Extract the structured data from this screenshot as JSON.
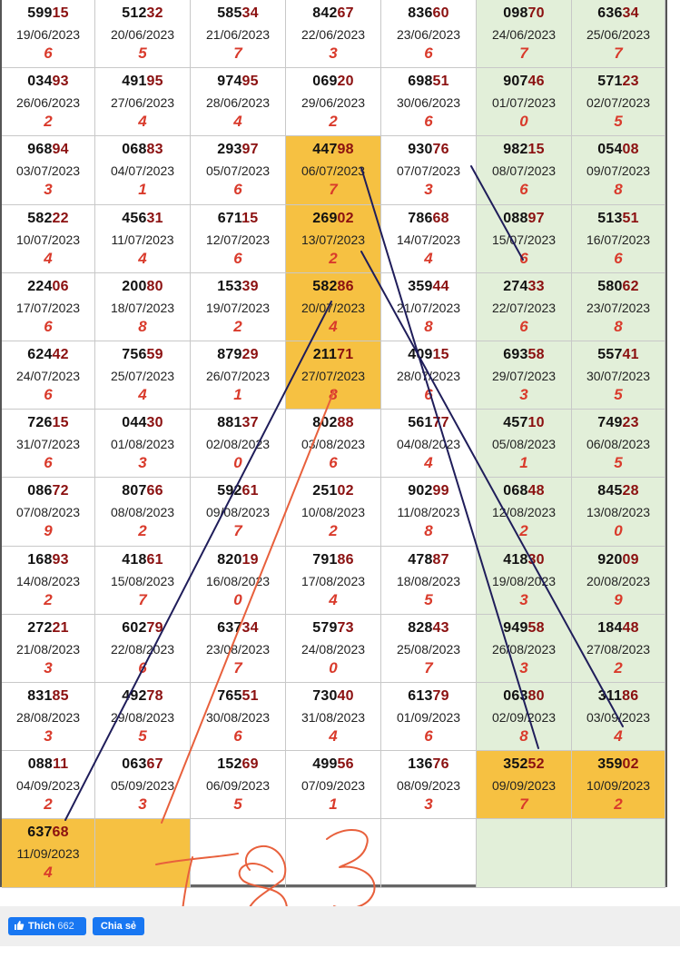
{
  "colors": {
    "green": "#e2efd9",
    "yellow": "#f6c142",
    "digit_black": "#111111",
    "digit_red": "#8b1010",
    "sum_red": "#d93a2b",
    "line_navy": "#1f1d5a",
    "line_orange": "#e8603c",
    "fb_blue": "#1877f2"
  },
  "grid": {
    "rows": [
      {
        "cells": [
          {
            "pre": "599",
            "suf": "15",
            "date": "19/06/2023",
            "sum": "6"
          },
          {
            "pre": "512",
            "suf": "32",
            "date": "20/06/2023",
            "sum": "5"
          },
          {
            "pre": "585",
            "suf": "34",
            "date": "21/06/2023",
            "sum": "7"
          },
          {
            "pre": "842",
            "suf": "67",
            "date": "22/06/2023",
            "sum": "3"
          },
          {
            "pre": "836",
            "suf": "60",
            "date": "23/06/2023",
            "sum": "6"
          },
          {
            "pre": "098",
            "suf": "70",
            "date": "24/06/2023",
            "sum": "7",
            "bg": "green"
          },
          {
            "pre": "636",
            "suf": "34",
            "date": "25/06/2023",
            "sum": "7",
            "bg": "green"
          }
        ]
      },
      {
        "cells": [
          {
            "pre": "034",
            "suf": "93",
            "date": "26/06/2023",
            "sum": "2"
          },
          {
            "pre": "491",
            "suf": "95",
            "date": "27/06/2023",
            "sum": "4"
          },
          {
            "pre": "974",
            "suf": "95",
            "date": "28/06/2023",
            "sum": "4"
          },
          {
            "pre": "069",
            "suf": "20",
            "date": "29/06/2023",
            "sum": "2"
          },
          {
            "pre": "698",
            "suf": "51",
            "date": "30/06/2023",
            "sum": "6"
          },
          {
            "pre": "907",
            "suf": "46",
            "date": "01/07/2023",
            "sum": "0",
            "bg": "green"
          },
          {
            "pre": "571",
            "suf": "23",
            "date": "02/07/2023",
            "sum": "5",
            "bg": "green"
          }
        ]
      },
      {
        "cells": [
          {
            "pre": "968",
            "suf": "94",
            "date": "03/07/2023",
            "sum": "3"
          },
          {
            "pre": "068",
            "suf": "83",
            "date": "04/07/2023",
            "sum": "1"
          },
          {
            "pre": "293",
            "suf": "97",
            "date": "05/07/2023",
            "sum": "6"
          },
          {
            "pre": "447",
            "suf": "98",
            "date": "06/07/2023",
            "sum": "7",
            "bg": "yellow"
          },
          {
            "pre": "930",
            "suf": "76",
            "date": "07/07/2023",
            "sum": "3"
          },
          {
            "pre": "982",
            "suf": "15",
            "date": "08/07/2023",
            "sum": "6",
            "bg": "green"
          },
          {
            "pre": "054",
            "suf": "08",
            "date": "09/07/2023",
            "sum": "8",
            "bg": "green"
          }
        ]
      },
      {
        "cells": [
          {
            "pre": "582",
            "suf": "22",
            "date": "10/07/2023",
            "sum": "4"
          },
          {
            "pre": "456",
            "suf": "31",
            "date": "11/07/2023",
            "sum": "4"
          },
          {
            "pre": "671",
            "suf": "15",
            "date": "12/07/2023",
            "sum": "6"
          },
          {
            "pre": "269",
            "suf": "02",
            "date": "13/07/2023",
            "sum": "2",
            "bg": "yellow"
          },
          {
            "pre": "786",
            "suf": "68",
            "date": "14/07/2023",
            "sum": "4"
          },
          {
            "pre": "088",
            "suf": "97",
            "date": "15/07/2023",
            "sum": "6",
            "bg": "green"
          },
          {
            "pre": "513",
            "suf": "51",
            "date": "16/07/2023",
            "sum": "6",
            "bg": "green"
          }
        ]
      },
      {
        "cells": [
          {
            "pre": "224",
            "suf": "06",
            "date": "17/07/2023",
            "sum": "6"
          },
          {
            "pre": "200",
            "suf": "80",
            "date": "18/07/2023",
            "sum": "8"
          },
          {
            "pre": "153",
            "suf": "39",
            "date": "19/07/2023",
            "sum": "2"
          },
          {
            "pre": "582",
            "suf": "86",
            "date": "20/07/2023",
            "sum": "4",
            "bg": "yellow"
          },
          {
            "pre": "359",
            "suf": "44",
            "date": "21/07/2023",
            "sum": "8"
          },
          {
            "pre": "274",
            "suf": "33",
            "date": "22/07/2023",
            "sum": "6",
            "bg": "green"
          },
          {
            "pre": "580",
            "suf": "62",
            "date": "23/07/2023",
            "sum": "8",
            "bg": "green"
          }
        ]
      },
      {
        "cells": [
          {
            "pre": "624",
            "suf": "42",
            "date": "24/07/2023",
            "sum": "6"
          },
          {
            "pre": "756",
            "suf": "59",
            "date": "25/07/2023",
            "sum": "4"
          },
          {
            "pre": "879",
            "suf": "29",
            "date": "26/07/2023",
            "sum": "1"
          },
          {
            "pre": "211",
            "suf": "71",
            "date": "27/07/2023",
            "sum": "8",
            "bg": "yellow"
          },
          {
            "pre": "409",
            "suf": "15",
            "date": "28/07/2023",
            "sum": "6"
          },
          {
            "pre": "693",
            "suf": "58",
            "date": "29/07/2023",
            "sum": "3",
            "bg": "green"
          },
          {
            "pre": "557",
            "suf": "41",
            "date": "30/07/2023",
            "sum": "5",
            "bg": "green"
          }
        ]
      },
      {
        "cells": [
          {
            "pre": "726",
            "suf": "15",
            "date": "31/07/2023",
            "sum": "6"
          },
          {
            "pre": "044",
            "suf": "30",
            "date": "01/08/2023",
            "sum": "3"
          },
          {
            "pre": "881",
            "suf": "37",
            "date": "02/08/2023",
            "sum": "0"
          },
          {
            "pre": "802",
            "suf": "88",
            "date": "03/08/2023",
            "sum": "6"
          },
          {
            "pre": "561",
            "suf": "77",
            "date": "04/08/2023",
            "sum": "4"
          },
          {
            "pre": "457",
            "suf": "10",
            "date": "05/08/2023",
            "sum": "1",
            "bg": "green"
          },
          {
            "pre": "749",
            "suf": "23",
            "date": "06/08/2023",
            "sum": "5",
            "bg": "green"
          }
        ]
      },
      {
        "cells": [
          {
            "pre": "086",
            "suf": "72",
            "date": "07/08/2023",
            "sum": "9"
          },
          {
            "pre": "807",
            "suf": "66",
            "date": "08/08/2023",
            "sum": "2"
          },
          {
            "pre": "592",
            "suf": "61",
            "date": "09/08/2023",
            "sum": "7"
          },
          {
            "pre": "251",
            "suf": "02",
            "date": "10/08/2023",
            "sum": "2"
          },
          {
            "pre": "902",
            "suf": "99",
            "date": "11/08/2023",
            "sum": "8"
          },
          {
            "pre": "068",
            "suf": "48",
            "date": "12/08/2023",
            "sum": "2",
            "bg": "green"
          },
          {
            "pre": "845",
            "suf": "28",
            "date": "13/08/2023",
            "sum": "0",
            "bg": "green"
          }
        ]
      },
      {
        "cells": [
          {
            "pre": "168",
            "suf": "93",
            "date": "14/08/2023",
            "sum": "2"
          },
          {
            "pre": "418",
            "suf": "61",
            "date": "15/08/2023",
            "sum": "7"
          },
          {
            "pre": "820",
            "suf": "19",
            "date": "16/08/2023",
            "sum": "0"
          },
          {
            "pre": "791",
            "suf": "86",
            "date": "17/08/2023",
            "sum": "4"
          },
          {
            "pre": "478",
            "suf": "87",
            "date": "18/08/2023",
            "sum": "5"
          },
          {
            "pre": "418",
            "suf": "30",
            "date": "19/08/2023",
            "sum": "3",
            "bg": "green"
          },
          {
            "pre": "920",
            "suf": "09",
            "date": "20/08/2023",
            "sum": "9",
            "bg": "green"
          }
        ]
      },
      {
        "cells": [
          {
            "pre": "272",
            "suf": "21",
            "date": "21/08/2023",
            "sum": "3"
          },
          {
            "pre": "602",
            "suf": "79",
            "date": "22/08/2023",
            "sum": "6"
          },
          {
            "pre": "637",
            "suf": "34",
            "date": "23/08/2023",
            "sum": "7"
          },
          {
            "pre": "579",
            "suf": "73",
            "date": "24/08/2023",
            "sum": "0"
          },
          {
            "pre": "828",
            "suf": "43",
            "date": "25/08/2023",
            "sum": "7"
          },
          {
            "pre": "949",
            "suf": "58",
            "date": "26/08/2023",
            "sum": "3",
            "bg": "green"
          },
          {
            "pre": "184",
            "suf": "48",
            "date": "27/08/2023",
            "sum": "2",
            "bg": "green"
          }
        ]
      },
      {
        "cells": [
          {
            "pre": "831",
            "suf": "85",
            "date": "28/08/2023",
            "sum": "3"
          },
          {
            "pre": "492",
            "suf": "78",
            "date": "29/08/2023",
            "sum": "5"
          },
          {
            "pre": "765",
            "suf": "51",
            "date": "30/08/2023",
            "sum": "6"
          },
          {
            "pre": "730",
            "suf": "40",
            "date": "31/08/2023",
            "sum": "4"
          },
          {
            "pre": "613",
            "suf": "79",
            "date": "01/09/2023",
            "sum": "6"
          },
          {
            "pre": "063",
            "suf": "80",
            "date": "02/09/2023",
            "sum": "8",
            "bg": "green"
          },
          {
            "pre": "311",
            "suf": "86",
            "date": "03/09/2023",
            "sum": "4",
            "bg": "green"
          }
        ]
      },
      {
        "cells": [
          {
            "pre": "088",
            "suf": "11",
            "date": "04/09/2023",
            "sum": "2"
          },
          {
            "pre": "063",
            "suf": "67",
            "date": "05/09/2023",
            "sum": "3"
          },
          {
            "pre": "152",
            "suf": "69",
            "date": "06/09/2023",
            "sum": "5"
          },
          {
            "pre": "499",
            "suf": "56",
            "date": "07/09/2023",
            "sum": "1"
          },
          {
            "pre": "136",
            "suf": "76",
            "date": "08/09/2023",
            "sum": "3"
          },
          {
            "pre": "352",
            "suf": "52",
            "date": "09/09/2023",
            "sum": "7",
            "bg": "yellow"
          },
          {
            "pre": "359",
            "suf": "02",
            "date": "10/09/2023",
            "sum": "2",
            "bg": "yellow"
          }
        ]
      },
      {
        "cells": [
          {
            "pre": "637",
            "suf": "68",
            "date": "11/09/2023",
            "sum": "4",
            "bg": "yellow"
          },
          {
            "bg": "yellow"
          },
          {},
          {},
          {},
          {
            "bg": "green"
          },
          {
            "bg": "green"
          }
        ]
      }
    ]
  },
  "handwriting": {
    "note": "783"
  },
  "footer": {
    "like_label": "Thích",
    "like_count": "662",
    "share_label": "Chia sẻ",
    "like_icon": "thumbs-up-icon"
  }
}
